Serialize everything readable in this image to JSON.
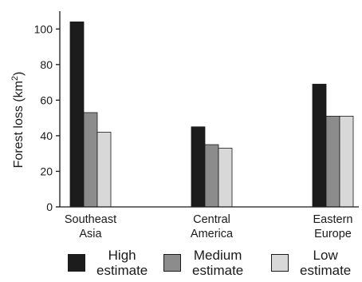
{
  "chart_data": {
    "type": "bar",
    "categories": [
      [
        "Southeast",
        "Asia"
      ],
      [
        "Central",
        "America"
      ],
      [
        "Eastern",
        "Europe"
      ]
    ],
    "series": [
      {
        "name": "High estimate",
        "legend_lines": [
          "High",
          "estimate"
        ],
        "color": "#1c1c1c",
        "values": [
          104,
          45,
          69
        ]
      },
      {
        "name": "Medium estimate",
        "legend_lines": [
          "Medium",
          "estimate"
        ],
        "color": "#8c8c8c",
        "values": [
          53,
          35,
          51
        ]
      },
      {
        "name": "Low estimate",
        "legend_lines": [
          "Low",
          "estimate"
        ],
        "color": "#d8d8d8",
        "values": [
          42,
          33,
          51
        ]
      }
    ],
    "ylabel": "Forest loss (km",
    "ylabel_superscript": "2",
    "ylabel_suffix": ")",
    "ylim": [
      0,
      110
    ],
    "yticks": [
      0,
      20,
      40,
      60,
      80,
      100
    ],
    "grid": false,
    "legend_position": "bottom"
  }
}
